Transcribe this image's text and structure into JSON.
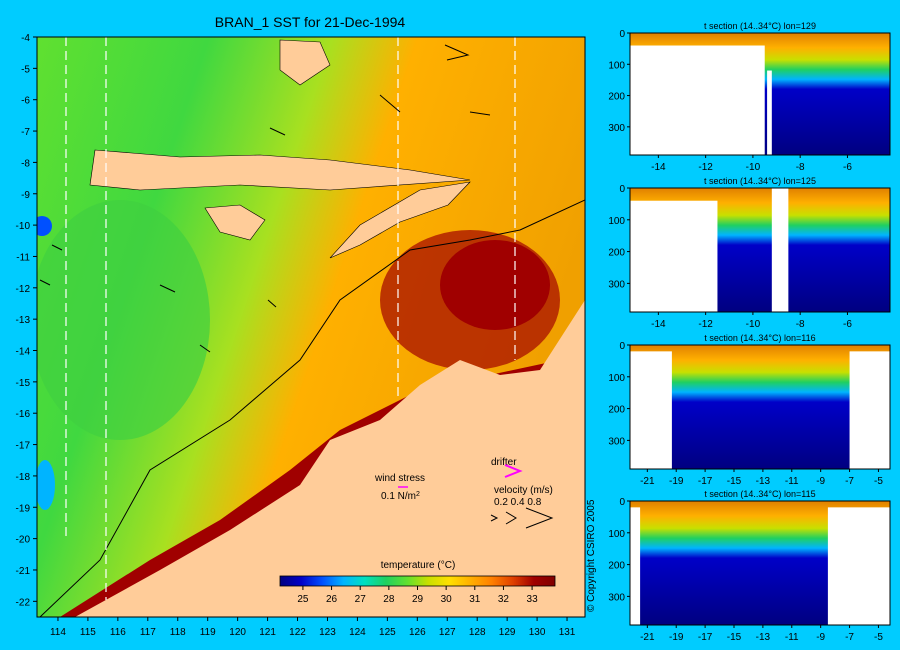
{
  "title": "BRAN_1 SST for 21-Dec-1994",
  "copyright": "© Copyright CSIRO 2005",
  "colors": {
    "background": "#00ccff",
    "land": "#ffcc99",
    "colorbar": [
      "#000080",
      "#0000c8",
      "#0050ff",
      "#00b4ff",
      "#00e0c0",
      "#20d060",
      "#60e030",
      "#c8e000",
      "#ffe000",
      "#ffb000",
      "#ff8000",
      "#e04000",
      "#a00000",
      "#800000"
    ]
  },
  "chart_data": [
    {
      "type": "heatmap",
      "title": "BRAN_1 SST for 21-Dec-1994",
      "x": [
        114,
        115,
        116,
        117,
        118,
        119,
        120,
        121,
        122,
        123,
        124,
        125,
        126,
        127,
        128,
        129,
        130,
        131
      ],
      "y": [
        -4,
        -5,
        -6,
        -7,
        -8,
        -9,
        -10,
        -11,
        -12,
        -13,
        -14,
        -15,
        -16,
        -17,
        -18,
        -19,
        -20,
        -21,
        -22
      ],
      "xlim": [
        113.3,
        131.6
      ],
      "ylim": [
        -22.5,
        -4
      ],
      "section_longitudes": [
        114.5,
        115.8,
        125.5,
        129.3
      ],
      "colorbar": {
        "label": "temperature (°C)",
        "ticks": [
          25,
          26,
          27,
          28,
          29,
          30,
          31,
          32,
          33
        ],
        "range": [
          24.2,
          33.8
        ]
      },
      "legend": {
        "wind_stress_label": "wind stress",
        "wind_stress_value": "0.1 N/m",
        "wind_stress_exponent": "2",
        "drifter_label": "drifter",
        "velocity_label": "velocity (m/s)",
        "velocity_ticks": "0.2 0.4 0.8"
      }
    },
    {
      "type": "heatmap",
      "title": "t section (14..34°C) lon=129",
      "x": [
        -14,
        -12,
        -10,
        -8,
        -6
      ],
      "y": [
        0,
        100,
        200,
        300
      ],
      "xlim": [
        -15.2,
        -4.2
      ],
      "ylim": [
        390,
        0
      ]
    },
    {
      "type": "heatmap",
      "title": "t section (14..34°C) lon=125",
      "x": [
        -14,
        -12,
        -10,
        -8,
        -6
      ],
      "y": [
        0,
        100,
        200,
        300
      ],
      "xlim": [
        -15.2,
        -4.2
      ],
      "ylim": [
        390,
        0
      ]
    },
    {
      "type": "heatmap",
      "title": "t section (14..34°C) lon=116",
      "x": [
        -21,
        -19,
        -17,
        -15,
        -13,
        -11,
        -9,
        -7,
        -5
      ],
      "y": [
        0,
        100,
        200,
        300
      ],
      "xlim": [
        -22.2,
        -4.2
      ],
      "ylim": [
        390,
        0
      ]
    },
    {
      "type": "heatmap",
      "title": "t section (14..34°C) lon=115",
      "x": [
        -21,
        -19,
        -17,
        -15,
        -13,
        -11,
        -9,
        -7,
        -5
      ],
      "y": [
        0,
        100,
        200,
        300
      ],
      "xlim": [
        -22.2,
        -4.2
      ],
      "ylim": [
        390,
        0
      ]
    }
  ]
}
